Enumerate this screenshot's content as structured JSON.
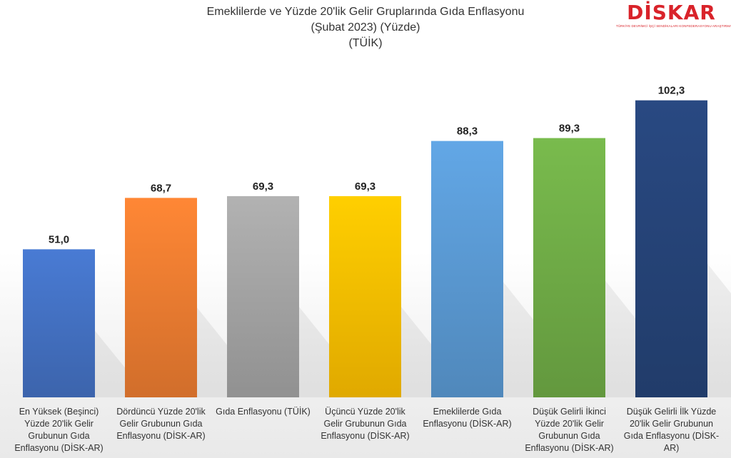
{
  "header": {
    "title_line1": "Emeklilerde ve Yüzde 20'lik Gelir Gruplarında Gıda Enflasyonu",
    "title_line2": "(Şubat 2023) (Yüzde)",
    "title_line3": "(TÜİK)"
  },
  "logo": {
    "text": "DİSKAR",
    "subtitle": "TÜRKİYE DEVRİMCİ İŞÇİ SENDİKALARI KONFEDERASYONU ARAŞTIRMA MERKEZİ"
  },
  "colors": {
    "bars": [
      "#4472c4",
      "#ed7d31",
      "#a5a5a5",
      "#ffc000",
      "#5b9bd5",
      "#70ad47",
      "#264478"
    ]
  },
  "chart_data": {
    "type": "bar",
    "title": "Emeklilerde ve Yüzde 20'lik Gelir Gruplarında Gıda Enflasyonu (Şubat 2023) (Yüzde) (TÜİK)",
    "categories": [
      "En Yüksek (Beşinci) Yüzde 20'lik Gelir Grubunun Gıda Enflasyonu (DİSK-AR)",
      "Dördüncü Yüzde 20'lik Gelir Grubunun Gıda Enflasyonu (DİSK-AR)",
      "Gıda Enflasyonu (TÜİK)",
      "Üçüncü Yüzde 20'lik Gelir Grubunun Gıda Enflasyonu (DİSK-AR)",
      "Emeklilerde Gıda Enflasyonu (DİSK-AR)",
      "Düşük Gelirli İkinci Yüzde 20'lik Gelir Grubunun Gıda Enflasyonu (DİSK-AR)",
      "Düşük Gelirli İlk Yüzde 20'lik Gelir Grubunun Gıda Enflasyonu (DİSK-AR)"
    ],
    "values": [
      51.0,
      68.7,
      69.3,
      69.3,
      88.3,
      89.3,
      102.3
    ],
    "value_labels": [
      "51,0",
      "68,7",
      "69,3",
      "69,3",
      "88,3",
      "89,3",
      "102,3"
    ],
    "ylim": [
      0,
      110
    ],
    "grid": false,
    "legend": "none"
  }
}
